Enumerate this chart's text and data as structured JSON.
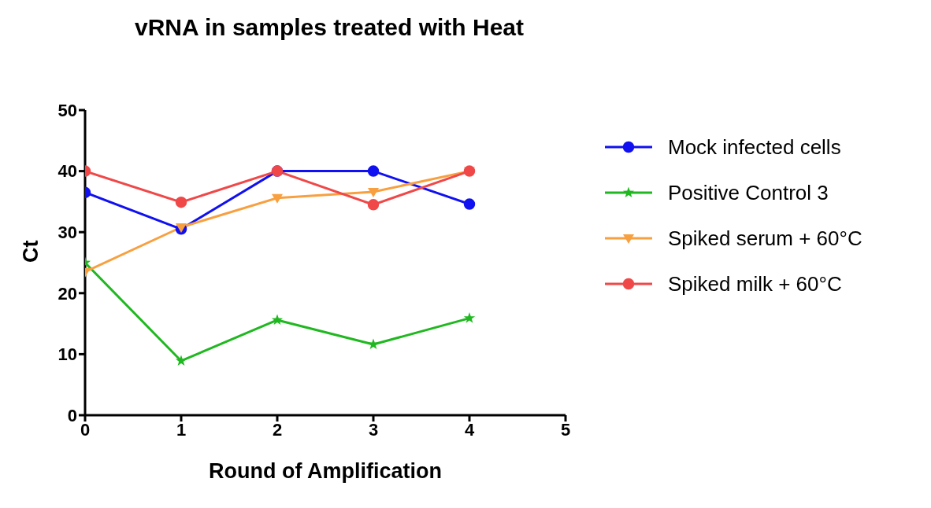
{
  "chart_data": {
    "type": "line",
    "title": "vRNA in samples treated with Heat",
    "xlabel": "Round of Amplification",
    "ylabel": "Ct",
    "x": [
      0,
      1,
      2,
      3,
      4
    ],
    "series": [
      {
        "name": "Mock infected cells",
        "color": "#1010f0",
        "marker": "circle",
        "values": [
          36.5,
          30.5,
          40,
          40,
          34.6
        ]
      },
      {
        "name": "Positive Control 3",
        "color": "#20b820",
        "marker": "star",
        "values": [
          25,
          8.9,
          15.6,
          11.6,
          15.9
        ]
      },
      {
        "name": "Spiked serum + 60°C",
        "color": "#f8a040",
        "marker": "triangle",
        "values": [
          23.5,
          30.8,
          35.6,
          36.6,
          40
        ]
      },
      {
        "name": "Spiked milk + 60°C",
        "color": "#f04848",
        "marker": "circle",
        "values": [
          40,
          34.9,
          40,
          34.5,
          40
        ]
      }
    ],
    "xlim": [
      0,
      5
    ],
    "xticks": [
      0,
      1,
      2,
      3,
      4,
      5
    ],
    "ylim": [
      0,
      50
    ],
    "yticks": [
      0,
      10,
      20,
      30,
      40,
      50
    ],
    "legend": "right",
    "line_style": "solid"
  }
}
